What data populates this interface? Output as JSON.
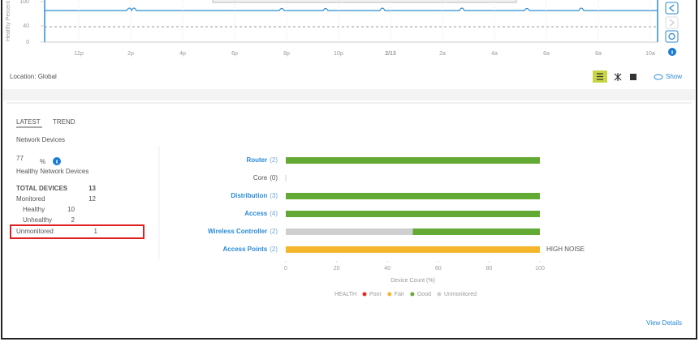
{
  "timeline": {
    "y_label": "Healthy Percent",
    "yticks": [
      100,
      40,
      0
    ],
    "ylim": [
      0,
      100
    ],
    "x_labels": [
      "12p",
      "2p",
      "4p",
      "6p",
      "8p",
      "10p",
      "2/13",
      "2a",
      "4a",
      "6a",
      "8a",
      "10a"
    ]
  },
  "toolbar": {
    "location": "Location: Global",
    "show": "Show"
  },
  "summary": {
    "tabs": [
      "LATEST",
      "TREND"
    ],
    "title": "Network Devices",
    "health_value": 77,
    "health_unit": "%",
    "health_caption": "Healthy Network Devices",
    "rows": [
      {
        "label": "TOTAL DEVICES",
        "value": 13
      },
      {
        "label": "Monitored",
        "value": 12
      },
      {
        "label": "Healthy",
        "value": 10
      },
      {
        "label": "Unhealthy",
        "value": 2
      },
      {
        "label": "Unmonitored",
        "value": 1
      }
    ]
  },
  "health_chart": {
    "type": "bar",
    "orientation": "horizontal",
    "stacked": true,
    "categories": [
      "Router",
      "Core",
      "Distribution",
      "Access",
      "Wireless Controller",
      "Access Points"
    ],
    "count_labels": [
      "(2)",
      "(0)",
      "(3)",
      "(4)",
      "(2)",
      "(2)"
    ],
    "series": [
      {
        "name": "Poor",
        "color": "#e02b20",
        "values": [
          0,
          0,
          0,
          0,
          0,
          0
        ]
      },
      {
        "name": "Fair",
        "color": "#f5b62b",
        "values": [
          0,
          0,
          0,
          0,
          0,
          100
        ]
      },
      {
        "name": "Good",
        "color": "#62aa34",
        "values": [
          100,
          0,
          100,
          100,
          50,
          0
        ]
      },
      {
        "name": "Unmonitored",
        "color": "#cfcfcf",
        "values": [
          0,
          0,
          0,
          0,
          50,
          0
        ]
      }
    ],
    "legend_title": "HEALTH",
    "xlim": [
      0,
      100
    ],
    "xticks": [
      0,
      20,
      40,
      60,
      80,
      100
    ],
    "x_label": "Device Count (%)",
    "annotations": [
      {
        "category": "Access Points",
        "text": "HIGH NOISE"
      }
    ]
  },
  "footer": {
    "link": "View Details"
  }
}
